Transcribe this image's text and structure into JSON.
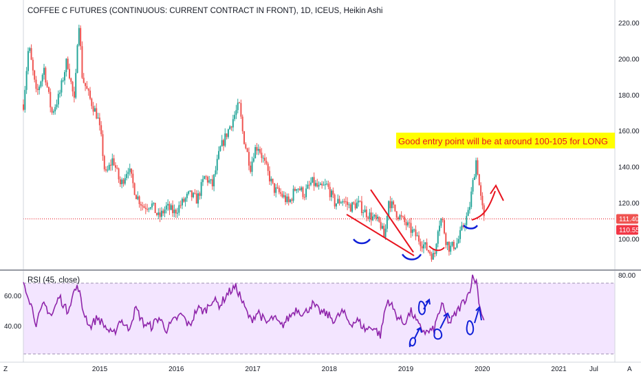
{
  "chart_data": {
    "type": "candlestick",
    "title": "COFFEE C FUTURES (CONTINUOUS: CURRENT CONTRACT IN FRONT), 1D, ICEUS, Heikin Ashi",
    "timeframe": "1D",
    "exchange": "ICEUS",
    "style": "Heikin Ashi",
    "price_axis": {
      "ticks": [
        "220.00",
        "200.00",
        "180.00",
        "160.00",
        "140.00",
        "120.00",
        "100.00",
        "80.00"
      ],
      "ylim": [
        80,
        232
      ]
    },
    "time_axis": {
      "ticks": [
        "2015",
        "2016",
        "2017",
        "2018",
        "2019",
        "2020",
        "2021",
        "Jul"
      ]
    },
    "price_labels": [
      {
        "text": "111.40",
        "value": 111.4,
        "color": "#ef5350"
      },
      {
        "text": "110.55",
        "value": 110.55,
        "color": "#f23645"
      }
    ],
    "reference_line": {
      "value": 111.4,
      "color": "#e8141f"
    },
    "series": [
      {
        "name": "price",
        "x": [
          2014.03,
          2014.1,
          2014.2,
          2014.3,
          2014.4,
          2014.5,
          2014.6,
          2014.7,
          2014.75,
          2014.8,
          2014.9,
          2015.0,
          2015.05,
          2015.1,
          2015.2,
          2015.3,
          2015.4,
          2015.5,
          2015.6,
          2015.7,
          2015.8,
          2015.9,
          2016.0,
          2016.1,
          2016.2,
          2016.3,
          2016.4,
          2016.5,
          2016.6,
          2016.7,
          2016.8,
          2016.85,
          2016.9,
          2017.0,
          2017.05,
          2017.1,
          2017.2,
          2017.3,
          2017.4,
          2017.5,
          2017.6,
          2017.7,
          2017.8,
          2017.9,
          2018.0,
          2018.1,
          2018.2,
          2018.3,
          2018.4,
          2018.5,
          2018.6,
          2018.7,
          2018.75,
          2018.8,
          2018.9,
          2019.0,
          2019.1,
          2019.2,
          2019.3,
          2019.4,
          2019.45,
          2019.5,
          2019.55,
          2019.6,
          2019.7,
          2019.8,
          2019.85,
          2019.9,
          2019.95,
          2020.0,
          2020.05
        ],
        "values": [
          175,
          208,
          180,
          195,
          170,
          180,
          200,
          175,
          225,
          190,
          178,
          168,
          155,
          135,
          145,
          130,
          140,
          125,
          118,
          120,
          112,
          118,
          115,
          120,
          125,
          122,
          135,
          130,
          150,
          160,
          170,
          175,
          158,
          140,
          150,
          152,
          140,
          128,
          125,
          120,
          130,
          125,
          132,
          128,
          130,
          120,
          122,
          118,
          120,
          115,
          112,
          108,
          100,
          122,
          115,
          110,
          105,
          100,
          95,
          90,
          108,
          112,
          100,
          95,
          98,
          110,
          115,
          130,
          145,
          125,
          111
        ]
      }
    ],
    "annotations": [
      "Good entry point will be at around 100-105 for LONG"
    ],
    "indicator": {
      "name": "RSI (45, close)",
      "ticks": [
        "60.00",
        "40.00"
      ],
      "ylim": [
        22,
        78
      ],
      "band": [
        30,
        70
      ],
      "series": [
        {
          "name": "RSI",
          "x": [
            2014.03,
            2014.1,
            2014.2,
            2014.3,
            2014.4,
            2014.5,
            2014.6,
            2014.7,
            2014.75,
            2014.8,
            2014.9,
            2015.0,
            2015.1,
            2015.2,
            2015.3,
            2015.4,
            2015.5,
            2015.6,
            2015.7,
            2015.8,
            2015.9,
            2016.0,
            2016.1,
            2016.2,
            2016.3,
            2016.4,
            2016.5,
            2016.6,
            2016.7,
            2016.8,
            2016.85,
            2016.9,
            2017.0,
            2017.1,
            2017.2,
            2017.3,
            2017.4,
            2017.5,
            2017.6,
            2017.7,
            2017.8,
            2017.9,
            2018.0,
            2018.1,
            2018.2,
            2018.3,
            2018.4,
            2018.5,
            2018.6,
            2018.7,
            2018.75,
            2018.8,
            2018.9,
            2019.0,
            2019.1,
            2019.2,
            2019.3,
            2019.4,
            2019.45,
            2019.5,
            2019.6,
            2019.7,
            2019.8,
            2019.85,
            2019.9,
            2019.95,
            2020.0,
            2020.05
          ],
          "values": [
            70,
            60,
            42,
            55,
            47,
            60,
            50,
            64,
            66,
            52,
            40,
            46,
            40,
            34,
            45,
            38,
            52,
            42,
            40,
            46,
            38,
            44,
            48,
            40,
            52,
            50,
            58,
            54,
            62,
            66,
            62,
            55,
            44,
            50,
            42,
            46,
            40,
            46,
            52,
            48,
            55,
            50,
            48,
            44,
            50,
            42,
            44,
            38,
            40,
            34,
            50,
            58,
            48,
            42,
            50,
            40,
            36,
            38,
            48,
            54,
            42,
            50,
            58,
            62,
            72,
            70,
            52,
            45
          ]
        }
      ]
    }
  }
}
